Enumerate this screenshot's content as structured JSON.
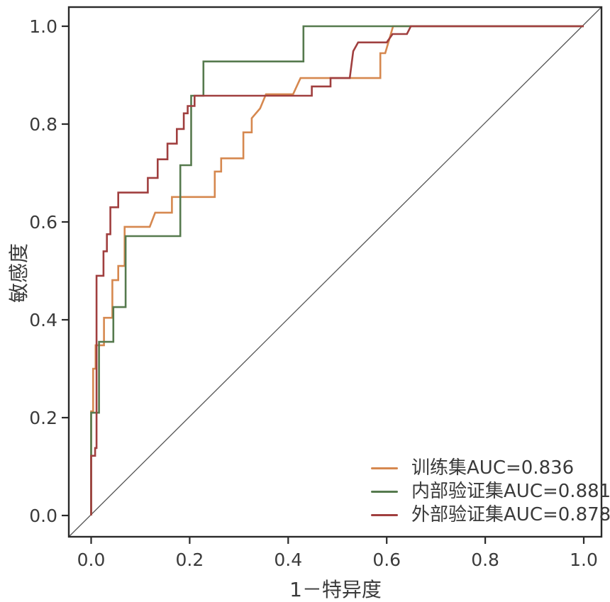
{
  "figure": {
    "background": "#ffffff"
  },
  "chart_data": {
    "type": "line",
    "subtype": "roc-step-curves",
    "title": "",
    "xlabel": "1－特异度",
    "ylabel": "敏感度",
    "xlim": [
      0.0,
      1.0
    ],
    "ylim": [
      0.0,
      1.0
    ],
    "grid": false,
    "legend_position": "lower right",
    "frame_color": "#2a2a2a",
    "tick_label_color": "#3b3b3b",
    "xticks": {
      "values": [
        0,
        0.2,
        0.4,
        0.6,
        0.8,
        1.0
      ],
      "labels": [
        "0.0",
        "0.2",
        "0.4",
        "0.6",
        "0.8",
        "1.0"
      ]
    },
    "yticks": {
      "values": [
        0,
        0.2,
        0.4,
        0.6,
        0.8,
        1.0
      ],
      "labels": [
        "0.0",
        "0.2",
        "0.4",
        "0.6",
        "0.8",
        "1.0"
      ]
    },
    "reference_line": {
      "type": "diagonal",
      "from": [
        0,
        0
      ],
      "to": [
        1,
        1
      ],
      "color": "#555555"
    },
    "series": [
      {
        "name": "训练集AUC=0.836",
        "auc": 0.836,
        "color": "#d6884f",
        "points": [
          [
            0,
            0
          ],
          [
            0,
            0.213
          ],
          [
            0.004,
            0.213
          ],
          [
            0.004,
            0.3
          ],
          [
            0.009,
            0.3
          ],
          [
            0.009,
            0.348
          ],
          [
            0.026,
            0.348
          ],
          [
            0.026,
            0.404
          ],
          [
            0.043,
            0.404
          ],
          [
            0.043,
            0.481
          ],
          [
            0.055,
            0.481
          ],
          [
            0.055,
            0.51
          ],
          [
            0.068,
            0.51
          ],
          [
            0.068,
            0.59
          ],
          [
            0.119,
            0.59
          ],
          [
            0.13,
            0.619
          ],
          [
            0.164,
            0.619
          ],
          [
            0.164,
            0.651
          ],
          [
            0.251,
            0.651
          ],
          [
            0.251,
            0.703
          ],
          [
            0.264,
            0.703
          ],
          [
            0.264,
            0.73
          ],
          [
            0.309,
            0.73
          ],
          [
            0.309,
            0.783
          ],
          [
            0.326,
            0.783
          ],
          [
            0.326,
            0.812
          ],
          [
            0.343,
            0.832
          ],
          [
            0.355,
            0.861
          ],
          [
            0.41,
            0.861
          ],
          [
            0.425,
            0.894
          ],
          [
            0.587,
            0.894
          ],
          [
            0.587,
            0.945
          ],
          [
            0.597,
            0.945
          ],
          [
            0.613,
            1.0
          ],
          [
            1,
            1
          ]
        ]
      },
      {
        "name": "内部验证集AUC=0.881",
        "auc": 0.881,
        "color": "#567a4e",
        "points": [
          [
            0,
            0
          ],
          [
            0,
            0.21
          ],
          [
            0.016,
            0.21
          ],
          [
            0.016,
            0.355
          ],
          [
            0.045,
            0.355
          ],
          [
            0.045,
            0.426
          ],
          [
            0.07,
            0.426
          ],
          [
            0.07,
            0.571
          ],
          [
            0.181,
            0.571
          ],
          [
            0.181,
            0.716
          ],
          [
            0.203,
            0.716
          ],
          [
            0.203,
            0.858
          ],
          [
            0.228,
            0.858
          ],
          [
            0.228,
            0.928
          ],
          [
            0.431,
            0.928
          ],
          [
            0.431,
            1.0
          ],
          [
            1,
            1
          ]
        ]
      },
      {
        "name": "外部验证集AUC=0.878",
        "auc": 0.878,
        "color": "#a03f3f",
        "points": [
          [
            0,
            0
          ],
          [
            0,
            0.122
          ],
          [
            0.008,
            0.122
          ],
          [
            0.008,
            0.138
          ],
          [
            0.011,
            0.138
          ],
          [
            0.011,
            0.49
          ],
          [
            0.025,
            0.49
          ],
          [
            0.025,
            0.54
          ],
          [
            0.032,
            0.54
          ],
          [
            0.032,
            0.575
          ],
          [
            0.039,
            0.575
          ],
          [
            0.039,
            0.63
          ],
          [
            0.055,
            0.63
          ],
          [
            0.055,
            0.66
          ],
          [
            0.115,
            0.66
          ],
          [
            0.115,
            0.69
          ],
          [
            0.135,
            0.69
          ],
          [
            0.135,
            0.728
          ],
          [
            0.155,
            0.728
          ],
          [
            0.155,
            0.76
          ],
          [
            0.174,
            0.76
          ],
          [
            0.174,
            0.79
          ],
          [
            0.188,
            0.79
          ],
          [
            0.188,
            0.822
          ],
          [
            0.196,
            0.822
          ],
          [
            0.196,
            0.837
          ],
          [
            0.21,
            0.837
          ],
          [
            0.21,
            0.858
          ],
          [
            0.448,
            0.858
          ],
          [
            0.448,
            0.877
          ],
          [
            0.486,
            0.877
          ],
          [
            0.486,
            0.894
          ],
          [
            0.525,
            0.894
          ],
          [
            0.532,
            0.949
          ],
          [
            0.542,
            0.967
          ],
          [
            0.6,
            0.967
          ],
          [
            0.612,
            0.984
          ],
          [
            0.641,
            0.984
          ],
          [
            0.649,
            1.0
          ],
          [
            1,
            1
          ]
        ]
      }
    ]
  }
}
